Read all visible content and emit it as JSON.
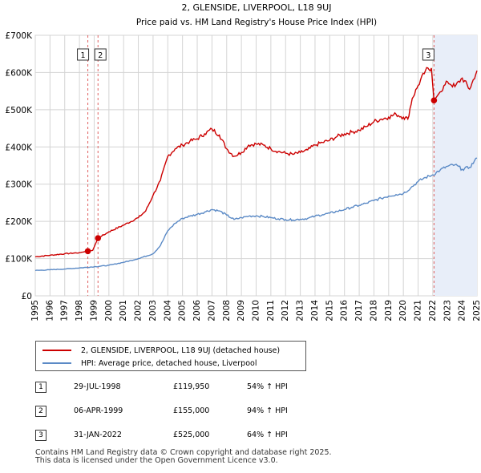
{
  "chart_data": {
    "type": "line",
    "title": "2, GLENSIDE, LIVERPOOL, L18 9UJ",
    "subtitle": "Price paid vs. HM Land Registry's House Price Index (HPI)",
    "xlabel": "",
    "ylabel": "",
    "xlim": [
      1995,
      2025
    ],
    "ylim": [
      0,
      700000
    ],
    "x_ticks": [
      "1995",
      "1996",
      "1997",
      "1998",
      "1999",
      "2000",
      "2001",
      "2002",
      "2003",
      "2004",
      "2005",
      "2006",
      "2007",
      "2008",
      "2009",
      "2010",
      "2011",
      "2012",
      "2013",
      "2014",
      "2015",
      "2016",
      "2017",
      "2018",
      "2019",
      "2020",
      "2021",
      "2022",
      "2023",
      "2024",
      "2025"
    ],
    "y_ticks": [
      {
        "value": 0,
        "label": "£0"
      },
      {
        "value": 100000,
        "label": "£100K"
      },
      {
        "value": 200000,
        "label": "£200K"
      },
      {
        "value": 300000,
        "label": "£300K"
      },
      {
        "value": 400000,
        "label": "£400K"
      },
      {
        "value": 500000,
        "label": "£500K"
      },
      {
        "value": 600000,
        "label": "£600K"
      },
      {
        "value": 700000,
        "label": "£700K"
      }
    ],
    "grid": true,
    "shaded_region": {
      "from": 2022.08,
      "to": 2025
    },
    "series": [
      {
        "name": "2, GLENSIDE, LIVERPOOL, L18 9UJ (detached house)",
        "color": "#cc0000",
        "x": [
          1995.0,
          1996.0,
          1997.0,
          1998.0,
          1998.57,
          1998.9,
          1999.26,
          1999.5,
          2000.0,
          2001.0,
          2002.0,
          2002.5,
          2003.0,
          2003.5,
          2004.0,
          2004.5,
          2005.0,
          2005.5,
          2006.0,
          2006.5,
          2007.0,
          2007.5,
          2008.0,
          2008.5,
          2009.0,
          2009.5,
          2010.0,
          2010.5,
          2011.0,
          2011.5,
          2012.0,
          2012.5,
          2013.0,
          2013.5,
          2014.0,
          2014.5,
          2015.0,
          2015.5,
          2016.0,
          2016.5,
          2017.0,
          2017.5,
          2018.0,
          2018.5,
          2019.0,
          2019.5,
          2020.0,
          2020.3,
          2020.6,
          2021.0,
          2021.5,
          2021.9,
          2022.08,
          2022.5,
          2023.0,
          2023.5,
          2024.0,
          2024.5,
          2025.0
        ],
        "values": [
          105000,
          109000,
          113000,
          116000,
          119950,
          122000,
          155000,
          160000,
          172000,
          190000,
          210000,
          228000,
          270000,
          310000,
          375000,
          395000,
          405000,
          415000,
          422000,
          435000,
          448000,
          432000,
          395000,
          375000,
          385000,
          405000,
          408000,
          405000,
          395000,
          388000,
          383000,
          380000,
          385000,
          392000,
          405000,
          412000,
          418000,
          428000,
          435000,
          440000,
          445000,
          455000,
          468000,
          475000,
          480000,
          488000,
          480000,
          475000,
          530000,
          565000,
          605000,
          612000,
          525000,
          548000,
          575000,
          562000,
          585000,
          555000,
          605000
        ]
      },
      {
        "name": "HPI: Average price, detached house, Liverpool",
        "color": "#5b8ac6",
        "x": [
          1995.0,
          1996.0,
          1997.0,
          1998.0,
          1999.0,
          2000.0,
          2001.0,
          2002.0,
          2003.0,
          2003.5,
          2004.0,
          2004.5,
          2005.0,
          2005.5,
          2006.0,
          2006.5,
          2007.0,
          2007.5,
          2008.0,
          2008.5,
          2009.0,
          2009.5,
          2010.0,
          2010.5,
          2011.0,
          2011.5,
          2012.0,
          2012.5,
          2013.0,
          2013.5,
          2014.0,
          2014.5,
          2015.0,
          2015.5,
          2016.0,
          2016.5,
          2017.0,
          2017.5,
          2018.0,
          2018.5,
          2019.0,
          2019.5,
          2020.0,
          2020.5,
          2021.0,
          2021.5,
          2022.0,
          2022.5,
          2023.0,
          2023.5,
          2024.0,
          2024.5,
          2025.0
        ],
        "values": [
          68000,
          70000,
          72000,
          75000,
          78000,
          82000,
          90000,
          100000,
          113000,
          135000,
          175000,
          195000,
          208000,
          214000,
          219000,
          225000,
          232000,
          228000,
          217000,
          205000,
          210000,
          214000,
          215000,
          213000,
          210000,
          207000,
          205000,
          204000,
          206000,
          208000,
          214000,
          218000,
          222000,
          227000,
          232000,
          238000,
          243000,
          249000,
          256000,
          262000,
          268000,
          272000,
          275000,
          290000,
          307000,
          318000,
          325000,
          338000,
          348000,
          352000,
          340000,
          345000,
          370000
        ]
      }
    ],
    "sales": [
      {
        "id": "1",
        "x": 1998.57,
        "value": 119950,
        "date": "29-JUL-1998",
        "price": "£119,950",
        "pct": "54% ↑ HPI"
      },
      {
        "id": "2",
        "x": 1999.26,
        "value": 155000,
        "date": "06-APR-1999",
        "price": "£155,000",
        "pct": "94% ↑ HPI"
      },
      {
        "id": "3",
        "x": 2022.08,
        "value": 525000,
        "date": "31-JAN-2022",
        "price": "£525,000",
        "pct": "64% ↑ HPI"
      }
    ]
  },
  "legend": {
    "property_label": "2, GLENSIDE, LIVERPOOL, L18 9UJ (detached house)",
    "hpi_label": "HPI: Average price, detached house, Liverpool"
  },
  "footer": {
    "line1": "Contains HM Land Registry data © Crown copyright and database right 2025.",
    "line2": "This data is licensed under the Open Government Licence v3.0."
  }
}
